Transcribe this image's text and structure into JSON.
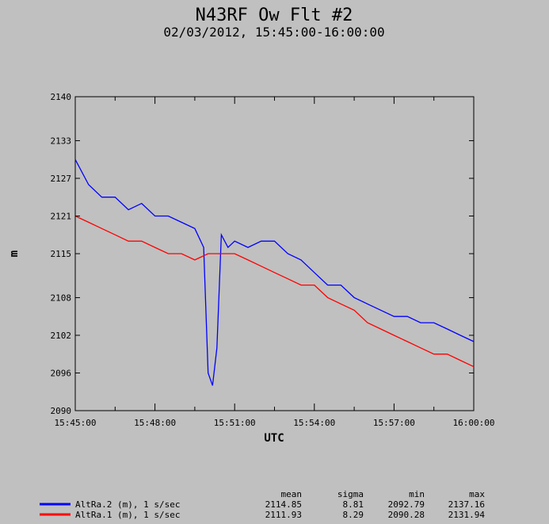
{
  "chart_data": {
    "type": "line",
    "title": "N43RF Ow Flt #2",
    "subtitle": "02/03/2012, 15:45:00-16:00:00",
    "xlabel": "UTC",
    "ylabel": "m",
    "ylim": [
      2090,
      2140
    ],
    "xlim": [
      "15:45:00",
      "16:00:00"
    ],
    "x_tick_labels": [
      "15:45:00",
      "15:48:00",
      "15:51:00",
      "15:54:00",
      "15:57:00",
      "16:00:00"
    ],
    "y_ticks": [
      2090,
      2096,
      2102,
      2108,
      2115,
      2121,
      2127,
      2133,
      2140
    ],
    "y_tick_labels": [
      "2090",
      "2096",
      "2102",
      "2108",
      "2115",
      "2121",
      "2127",
      "2133",
      "2140"
    ],
    "grid": false,
    "legend_position": "bottom",
    "stats_headers": [
      "mean",
      "sigma",
      "min",
      "max"
    ],
    "series": [
      {
        "name": "AltRa.2 (m), 1 s/sec",
        "color": "#0000ff",
        "stats": [
          "2114.85",
          "8.81",
          "2092.79",
          "2137.16"
        ],
        "x": [
          "15:45:00",
          "15:45:30",
          "15:46:00",
          "15:46:30",
          "15:47:00",
          "15:47:30",
          "15:48:00",
          "15:48:30",
          "15:49:00",
          "15:49:30",
          "15:49:50",
          "15:50:00",
          "15:50:10",
          "15:50:20",
          "15:50:30",
          "15:50:45",
          "15:51:00",
          "15:51:30",
          "15:52:00",
          "15:52:30",
          "15:53:00",
          "15:53:30",
          "15:54:00",
          "15:54:30",
          "15:55:00",
          "15:55:30",
          "15:56:00",
          "15:56:30",
          "15:57:00",
          "15:57:30",
          "15:58:00",
          "15:58:30",
          "15:59:00",
          "15:59:30",
          "16:00:00"
        ],
        "values": [
          2130,
          2126,
          2124,
          2124,
          2122,
          2123,
          2121,
          2121,
          2120,
          2119,
          2116,
          2096,
          2094,
          2100,
          2118,
          2116,
          2117,
          2116,
          2117,
          2117,
          2115,
          2114,
          2112,
          2110,
          2110,
          2108,
          2107,
          2106,
          2105,
          2105,
          2104,
          2104,
          2103,
          2102,
          2101
        ]
      },
      {
        "name": "AltRa.1 (m), 1 s/sec",
        "color": "#ff0000",
        "stats": [
          "2111.93",
          "8.29",
          "2090.28",
          "2131.94"
        ],
        "x": [
          "15:45:00",
          "15:45:30",
          "15:46:00",
          "15:46:30",
          "15:47:00",
          "15:47:30",
          "15:48:00",
          "15:48:30",
          "15:49:00",
          "15:49:30",
          "15:50:00",
          "15:50:30",
          "15:51:00",
          "15:51:30",
          "15:52:00",
          "15:52:30",
          "15:53:00",
          "15:53:30",
          "15:54:00",
          "15:54:30",
          "15:55:00",
          "15:55:30",
          "15:56:00",
          "15:56:30",
          "15:57:00",
          "15:57:30",
          "15:58:00",
          "15:58:30",
          "15:59:00",
          "15:59:30",
          "16:00:00"
        ],
        "values": [
          2121,
          2120,
          2119,
          2118,
          2117,
          2117,
          2116,
          2115,
          2115,
          2114,
          2115,
          2115,
          2115,
          2114,
          2113,
          2112,
          2111,
          2110,
          2110,
          2108,
          2107,
          2106,
          2104,
          2103,
          2102,
          2101,
          2100,
          2099,
          2099,
          2098,
          2097
        ]
      }
    ]
  }
}
